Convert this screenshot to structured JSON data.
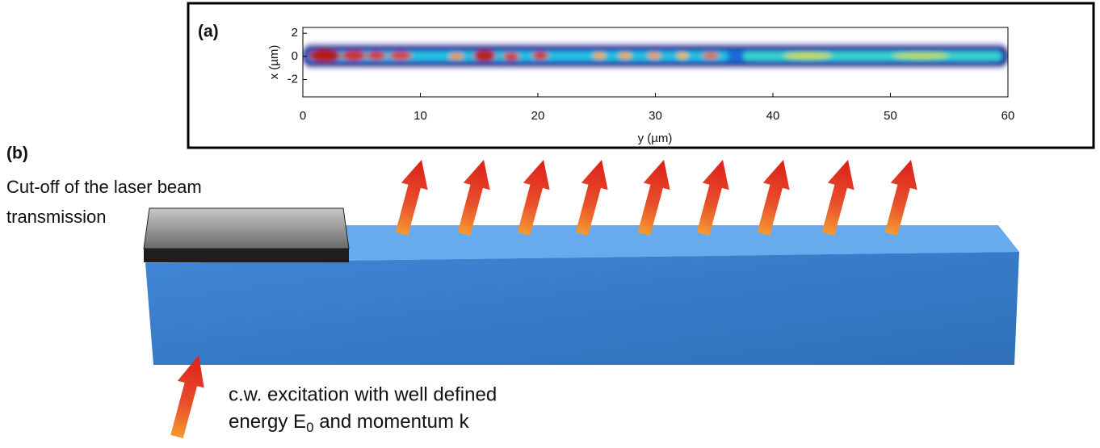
{
  "panel_a": {
    "label": "(a)",
    "x_axis_label": "y (µm)",
    "y_axis_label": "x (µm)",
    "xlim": [
      0,
      60
    ],
    "xticks": [
      0,
      10,
      20,
      30,
      40,
      50,
      60
    ],
    "ylim": [
      -3.5,
      2.5
    ],
    "yticks": [
      2,
      0,
      -2
    ]
  },
  "panel_b": {
    "label": "(b)",
    "cutoff_label": [
      "Cut-off of the laser beam",
      "transmission"
    ],
    "excitation_label": {
      "line1": "c.w. excitation with well defined",
      "line2_start": "energy E",
      "line2_sub": "0",
      "line2_end": " and momentum k"
    }
  }
}
